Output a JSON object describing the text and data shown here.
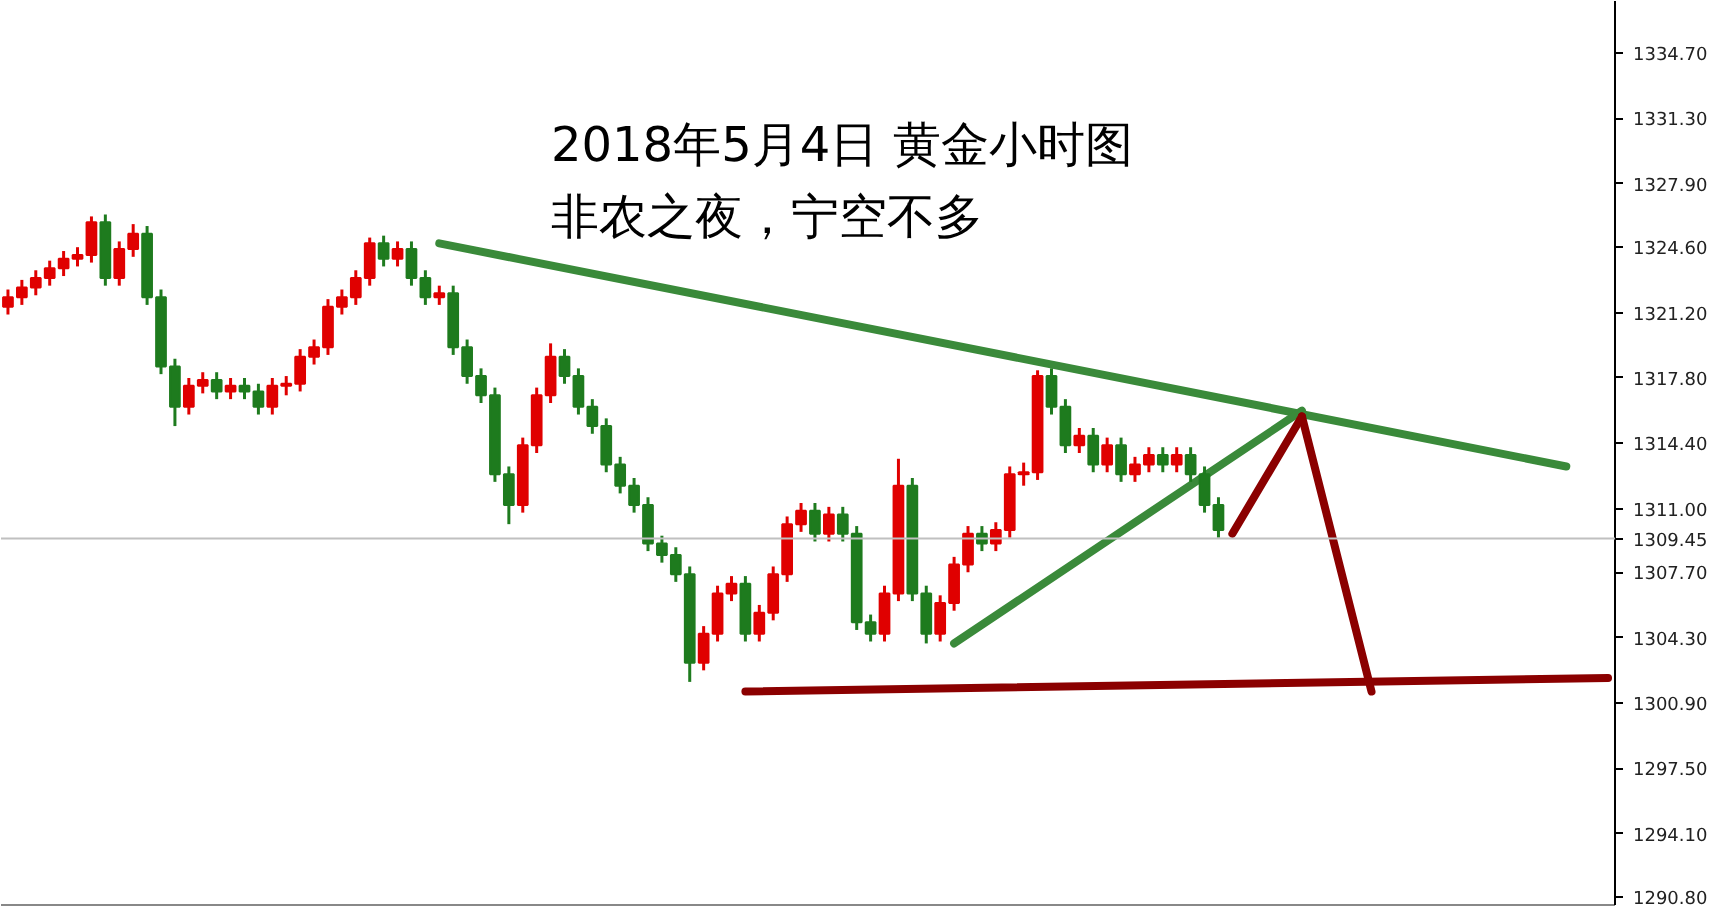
{
  "chart_data": {
    "type": "candlestick",
    "title": "2018年5月4日 黄金小时图",
    "subtitle": "非农之夜，宁空不多",
    "categories": [
      null,
      null,
      null,
      null,
      null,
      null,
      null,
      null,
      null,
      null,
      null,
      null,
      null,
      null,
      null,
      null,
      null,
      null,
      null,
      null,
      null,
      null,
      null,
      null,
      null,
      null,
      null,
      null,
      null,
      null,
      null,
      null,
      null,
      null,
      null,
      null,
      null,
      null,
      null,
      null,
      null,
      null,
      null,
      null,
      null,
      null,
      null,
      null,
      null,
      null,
      null,
      null,
      null,
      null,
      null,
      null,
      null,
      null,
      null,
      null,
      null,
      null,
      null,
      null,
      null,
      null,
      null,
      null,
      null,
      null,
      null,
      null,
      null,
      null,
      null,
      null,
      null,
      null,
      null,
      null,
      null,
      null,
      null,
      null,
      null,
      null,
      null,
      null,
      null,
      null,
      null,
      null,
      null,
      null,
      null,
      null,
      null,
      null,
      null,
      null,
      null,
      null,
      null,
      null,
      null,
      null,
      null,
      null,
      null,
      null,
      null,
      null,
      null,
      null,
      null,
      null
    ],
    "ohlc": [
      [
        1321.5,
        1322.4,
        1321.1,
        1322.0
      ],
      [
        1322.0,
        1322.9,
        1321.6,
        1322.5
      ],
      [
        1322.5,
        1323.4,
        1322.1,
        1323.0
      ],
      [
        1323.0,
        1323.9,
        1322.6,
        1323.5
      ],
      [
        1323.5,
        1324.4,
        1323.1,
        1324.0
      ],
      [
        1324.0,
        1324.6,
        1323.6,
        1324.2
      ],
      [
        1324.2,
        1326.2,
        1323.8,
        1325.9
      ],
      [
        1325.9,
        1326.3,
        1322.6,
        1323.0
      ],
      [
        1323.0,
        1324.9,
        1322.6,
        1324.5
      ],
      [
        1324.5,
        1325.8,
        1324.1,
        1325.3
      ],
      [
        1325.3,
        1325.7,
        1321.6,
        1322.0
      ],
      [
        1322.0,
        1322.4,
        1318.0,
        1318.4
      ],
      [
        1318.4,
        1318.8,
        1315.3,
        1316.3
      ],
      [
        1316.3,
        1317.8,
        1315.9,
        1317.4
      ],
      [
        1317.4,
        1318.1,
        1317.0,
        1317.7
      ],
      [
        1317.7,
        1318.1,
        1316.7,
        1317.1
      ],
      [
        1317.1,
        1317.8,
        1316.7,
        1317.4
      ],
      [
        1317.4,
        1317.8,
        1316.7,
        1317.1
      ],
      [
        1317.1,
        1317.5,
        1315.9,
        1316.3
      ],
      [
        1316.3,
        1317.8,
        1315.9,
        1317.4
      ],
      [
        1317.4,
        1317.9,
        1316.9,
        1317.5
      ],
      [
        1317.5,
        1319.3,
        1317.1,
        1318.9
      ],
      [
        1318.9,
        1319.8,
        1318.5,
        1319.4
      ],
      [
        1319.4,
        1321.9,
        1319.0,
        1321.5
      ],
      [
        1321.5,
        1322.4,
        1321.1,
        1322.0
      ],
      [
        1322.0,
        1323.4,
        1321.6,
        1323.0
      ],
      [
        1323.0,
        1325.1,
        1322.6,
        1324.8
      ],
      [
        1324.8,
        1325.2,
        1323.6,
        1324.0
      ],
      [
        1324.0,
        1324.9,
        1323.6,
        1324.5
      ],
      [
        1324.5,
        1324.9,
        1322.6,
        1323.0
      ],
      [
        1323.0,
        1323.4,
        1321.6,
        1322.0
      ],
      [
        1322.0,
        1322.6,
        1321.6,
        1322.2
      ],
      [
        1322.2,
        1322.6,
        1319.0,
        1319.4
      ],
      [
        1319.4,
        1319.8,
        1317.5,
        1317.9
      ],
      [
        1317.9,
        1318.3,
        1316.5,
        1316.9
      ],
      [
        1316.9,
        1317.3,
        1312.4,
        1312.8
      ],
      [
        1312.8,
        1313.2,
        1310.2,
        1311.2
      ],
      [
        1311.2,
        1314.7,
        1310.8,
        1314.3
      ],
      [
        1314.3,
        1317.3,
        1313.9,
        1316.9
      ],
      [
        1316.9,
        1319.6,
        1316.5,
        1318.9
      ],
      [
        1318.9,
        1319.3,
        1317.5,
        1317.9
      ],
      [
        1317.9,
        1318.3,
        1315.9,
        1316.3
      ],
      [
        1316.3,
        1316.7,
        1314.9,
        1315.3
      ],
      [
        1315.3,
        1315.7,
        1312.9,
        1313.3
      ],
      [
        1313.3,
        1313.7,
        1311.8,
        1312.2
      ],
      [
        1312.2,
        1312.6,
        1310.8,
        1311.2
      ],
      [
        1311.2,
        1311.6,
        1308.8,
        1309.2
      ],
      [
        1309.2,
        1309.6,
        1308.2,
        1308.6
      ],
      [
        1308.6,
        1309.0,
        1307.2,
        1307.6
      ],
      [
        1307.6,
        1308.0,
        1302.0,
        1303.0
      ],
      [
        1303.0,
        1304.9,
        1302.6,
        1304.5
      ],
      [
        1304.5,
        1307.0,
        1304.1,
        1306.6
      ],
      [
        1306.6,
        1307.5,
        1306.2,
        1307.1
      ],
      [
        1307.1,
        1307.5,
        1304.1,
        1304.5
      ],
      [
        1304.5,
        1306.0,
        1304.1,
        1305.6
      ],
      [
        1305.6,
        1308.0,
        1305.2,
        1307.6
      ],
      [
        1307.6,
        1310.6,
        1307.2,
        1310.2
      ],
      [
        1310.2,
        1311.3,
        1309.8,
        1310.9
      ],
      [
        1310.9,
        1311.3,
        1309.3,
        1309.7
      ],
      [
        1309.7,
        1311.1,
        1309.3,
        1310.7
      ],
      [
        1310.7,
        1311.1,
        1309.3,
        1309.7
      ],
      [
        1309.7,
        1310.1,
        1304.7,
        1305.1
      ],
      [
        1305.1,
        1305.5,
        1304.1,
        1304.5
      ],
      [
        1304.5,
        1307.0,
        1304.1,
        1306.6
      ],
      [
        1306.6,
        1313.6,
        1306.2,
        1312.2
      ],
      [
        1312.2,
        1312.6,
        1306.2,
        1306.6
      ],
      [
        1306.6,
        1307.0,
        1304.0,
        1304.5
      ],
      [
        1304.5,
        1306.5,
        1304.1,
        1306.1
      ],
      [
        1306.1,
        1308.5,
        1305.7,
        1308.1
      ],
      [
        1308.1,
        1310.1,
        1307.7,
        1309.7
      ],
      [
        1309.7,
        1310.1,
        1308.8,
        1309.2
      ],
      [
        1309.2,
        1310.3,
        1308.8,
        1309.9
      ],
      [
        1309.9,
        1313.2,
        1309.5,
        1312.8
      ],
      [
        1312.8,
        1313.4,
        1312.2,
        1312.9
      ],
      [
        1312.9,
        1318.2,
        1312.5,
        1317.9
      ],
      [
        1317.9,
        1318.3,
        1315.9,
        1316.3
      ],
      [
        1316.3,
        1316.7,
        1313.9,
        1314.3
      ],
      [
        1314.3,
        1315.2,
        1313.9,
        1314.8
      ],
      [
        1314.8,
        1315.2,
        1312.9,
        1313.3
      ],
      [
        1313.3,
        1314.7,
        1312.9,
        1314.3
      ],
      [
        1314.3,
        1314.7,
        1312.4,
        1312.8
      ],
      [
        1312.8,
        1313.7,
        1312.4,
        1313.3
      ],
      [
        1313.3,
        1314.2,
        1312.9,
        1313.8
      ],
      [
        1313.8,
        1314.2,
        1312.9,
        1313.3
      ],
      [
        1313.3,
        1314.2,
        1312.9,
        1313.8
      ],
      [
        1313.8,
        1314.2,
        1312.4,
        1312.8
      ],
      [
        1312.8,
        1313.2,
        1310.8,
        1311.2
      ],
      [
        1311.2,
        1311.6,
        1309.5,
        1309.9
      ],
      null,
      null,
      null,
      null,
      null,
      null,
      null,
      null,
      null,
      null,
      null,
      null,
      null,
      null,
      null,
      null,
      null,
      null,
      null,
      null,
      null,
      null,
      null,
      null,
      null,
      null,
      null,
      null
    ],
    "colors": [
      "#e00000",
      "#e00000",
      "#e00000",
      "#e00000",
      "#e00000",
      "#e00000",
      "#e00000",
      "#1e7b1e",
      "#e00000",
      "#e00000",
      "#1e7b1e",
      "#1e7b1e",
      "#1e7b1e",
      "#e00000",
      "#e00000",
      "#1e7b1e",
      "#e00000",
      "#1e7b1e",
      "#1e7b1e",
      "#e00000",
      "#e00000",
      "#e00000",
      "#e00000",
      "#e00000",
      "#e00000",
      "#e00000",
      "#e00000",
      "#1e7b1e",
      "#e00000",
      "#1e7b1e",
      "#1e7b1e",
      "#e00000",
      "#1e7b1e",
      "#1e7b1e",
      "#1e7b1e",
      "#1e7b1e",
      "#1e7b1e",
      "#e00000",
      "#e00000",
      "#e00000",
      "#1e7b1e",
      "#1e7b1e",
      "#1e7b1e",
      "#1e7b1e",
      "#1e7b1e",
      "#1e7b1e",
      "#1e7b1e",
      "#1e7b1e",
      "#1e7b1e",
      "#1e7b1e",
      "#e00000",
      "#e00000",
      "#e00000",
      "#1e7b1e",
      "#e00000",
      "#e00000",
      "#e00000",
      "#e00000",
      "#1e7b1e",
      "#e00000",
      "#1e7b1e",
      "#1e7b1e",
      "#1e7b1e",
      "#e00000",
      "#e00000",
      "#1e7b1e",
      "#1e7b1e",
      "#e00000",
      "#e00000",
      "#e00000",
      "#1e7b1e",
      "#e00000",
      "#e00000",
      "#e00000",
      "#e00000",
      "#1e7b1e",
      "#1e7b1e",
      "#e00000",
      "#1e7b1e",
      "#e00000",
      "#1e7b1e",
      "#e00000",
      "#e00000",
      "#1e7b1e",
      "#e00000",
      "#1e7b1e",
      "#1e7b1e",
      "#1e7b1e",
      null,
      null,
      null,
      null,
      null,
      null,
      null,
      null,
      null,
      null,
      null,
      null,
      null,
      null,
      null,
      null,
      null,
      null,
      null,
      null,
      null,
      null,
      null,
      null,
      null,
      null,
      null,
      null
    ],
    "series": [
      {
        "type": "line",
        "color": "#3a8a3a",
        "values": [
          null,
          null,
          null,
          null,
          null,
          null,
          null,
          null,
          null,
          null,
          null,
          null,
          null,
          null,
          null,
          null,
          null,
          null,
          null,
          null,
          null,
          null,
          null,
          null,
          null,
          null,
          null,
          null,
          null,
          null,
          null,
          1324.8,
          null,
          null,
          null,
          null,
          null,
          null,
          null,
          null,
          null,
          null,
          null,
          null,
          null,
          null,
          null,
          null,
          null,
          null,
          null,
          null,
          null,
          null,
          null,
          null,
          null,
          null,
          null,
          null,
          null,
          null,
          null,
          null,
          null,
          null,
          null,
          null,
          null,
          null,
          null,
          null,
          null,
          null,
          null,
          null,
          null,
          null,
          null,
          null,
          null,
          null,
          null,
          null,
          null,
          null,
          null,
          null,
          null,
          null,
          null,
          null,
          null,
          null,
          null,
          null,
          null,
          null,
          null,
          null,
          null,
          null,
          null,
          null,
          null,
          null,
          null,
          null,
          null,
          null,
          null,
          null,
          1313.2,
          null,
          null,
          null
        ]
      },
      {
        "type": "line",
        "color": "#3a8a3a",
        "values": [
          null,
          null,
          null,
          null,
          null,
          null,
          null,
          null,
          null,
          null,
          null,
          null,
          null,
          null,
          null,
          null,
          null,
          null,
          null,
          null,
          null,
          null,
          null,
          null,
          null,
          null,
          null,
          null,
          null,
          null,
          null,
          null,
          null,
          null,
          null,
          null,
          null,
          null,
          null,
          null,
          null,
          null,
          null,
          null,
          null,
          null,
          null,
          null,
          null,
          null,
          null,
          null,
          null,
          null,
          null,
          null,
          null,
          null,
          null,
          null,
          null,
          null,
          null,
          null,
          null,
          null,
          null,
          null,
          1304.0,
          null,
          null,
          null,
          null,
          null,
          null,
          null,
          null,
          null,
          null,
          null,
          null,
          null,
          null,
          null,
          null,
          null,
          null,
          null,
          null,
          null,
          null,
          null,
          null,
          1316.1,
          null,
          null,
          null,
          null,
          null,
          null,
          null,
          null,
          null,
          null,
          null,
          null,
          null,
          null,
          null,
          null,
          null,
          null,
          null,
          null,
          null,
          null
        ]
      },
      {
        "type": "line",
        "color": "#8b0000",
        "values": [
          null,
          null,
          null,
          null,
          null,
          null,
          null,
          null,
          null,
          null,
          null,
          null,
          null,
          null,
          null,
          null,
          null,
          null,
          null,
          null,
          null,
          null,
          null,
          null,
          null,
          null,
          null,
          null,
          null,
          null,
          null,
          null,
          null,
          null,
          null,
          null,
          null,
          null,
          null,
          null,
          null,
          null,
          null,
          null,
          null,
          null,
          null,
          null,
          null,
          null,
          null,
          null,
          null,
          null,
          null,
          null,
          null,
          null,
          null,
          null,
          null,
          null,
          null,
          null,
          null,
          null,
          null,
          null,
          null,
          null,
          null,
          null,
          null,
          null,
          null,
          null,
          null,
          null,
          null,
          null,
          null,
          null,
          null,
          null,
          null,
          null,
          null,
          null,
          1309.7,
          null,
          null,
          null,
          null,
          1315.8,
          null,
          null,
          null,
          null,
          null,
          null,
          null,
          null,
          null,
          null,
          null,
          null,
          null,
          null,
          null,
          null,
          null,
          null,
          null,
          null,
          null,
          null
        ]
      },
      {
        "type": "line",
        "color": "#8b0000",
        "values": [
          null,
          null,
          null,
          null,
          null,
          null,
          null,
          null,
          null,
          null,
          null,
          null,
          null,
          null,
          null,
          null,
          null,
          null,
          null,
          null,
          null,
          null,
          null,
          null,
          null,
          null,
          null,
          null,
          null,
          null,
          null,
          null,
          null,
          null,
          null,
          null,
          null,
          null,
          null,
          null,
          null,
          null,
          null,
          null,
          null,
          null,
          null,
          null,
          null,
          null,
          null,
          null,
          null,
          null,
          null,
          null,
          null,
          null,
          null,
          null,
          null,
          null,
          null,
          null,
          null,
          null,
          null,
          null,
          null,
          null,
          null,
          null,
          null,
          null,
          null,
          null,
          null,
          null,
          null,
          null,
          null,
          null,
          null,
          null,
          null,
          null,
          null,
          null,
          null,
          null,
          null,
          null,
          null,
          1315.8,
          null,
          null,
          null,
          null,
          1301.5,
          null,
          null,
          null,
          null,
          null,
          null,
          null,
          null,
          null,
          null,
          null,
          null,
          null,
          null,
          null,
          null,
          null
        ]
      },
      {
        "type": "line",
        "color": "#8b0000",
        "values": [
          null,
          null,
          null,
          null,
          null,
          null,
          null,
          null,
          null,
          null,
          null,
          null,
          null,
          null,
          null,
          null,
          null,
          null,
          null,
          null,
          null,
          null,
          null,
          null,
          null,
          null,
          null,
          null,
          null,
          null,
          null,
          null,
          null,
          null,
          null,
          null,
          null,
          null,
          null,
          null,
          null,
          null,
          null,
          null,
          null,
          null,
          null,
          null,
          null,
          null,
          null,
          null,
          null,
          1301.5,
          null,
          null,
          null,
          null,
          null,
          null,
          null,
          null,
          null,
          null,
          null,
          null,
          null,
          null,
          null,
          null,
          null,
          null,
          null,
          null,
          null,
          null,
          null,
          null,
          null,
          null,
          null,
          null,
          null,
          null,
          null,
          null,
          null,
          null,
          null,
          null,
          null,
          null,
          null,
          null,
          null,
          null,
          null,
          null,
          null,
          null,
          null,
          null,
          null,
          null,
          null,
          null,
          null,
          null,
          null,
          null,
          null,
          null,
          null,
          null,
          null,
          1302.2
        ]
      }
    ],
    "ref_lines": [
      {
        "axis": "y",
        "value": 1309.45,
        "label": "1309.45",
        "color": "#c0c0c0"
      }
    ],
    "ylim": [
      1290.4,
      1337.4
    ],
    "yticks": [
      {
        "value": 1334.7,
        "label": "1334.70"
      },
      {
        "value": 1331.3,
        "label": "1331.30"
      },
      {
        "value": 1327.9,
        "label": "1327.90"
      },
      {
        "value": 1324.6,
        "label": "1324.60"
      },
      {
        "value": 1321.2,
        "label": "1321.20"
      },
      {
        "value": 1317.8,
        "label": "1317.80"
      },
      {
        "value": 1314.4,
        "label": "1314.40"
      },
      {
        "value": 1311.0,
        "label": "1311.00"
      },
      {
        "value": 1307.7,
        "label": "1307.70"
      },
      {
        "value": 1304.3,
        "label": "1304.30"
      },
      {
        "value": 1300.9,
        "label": "1300.90"
      },
      {
        "value": 1297.5,
        "label": "1297.50"
      },
      {
        "value": 1294.1,
        "label": "1294.10"
      },
      {
        "value": 1290.8,
        "label": "1290.80"
      }
    ],
    "tick_labels": "y",
    "grid": false
  }
}
